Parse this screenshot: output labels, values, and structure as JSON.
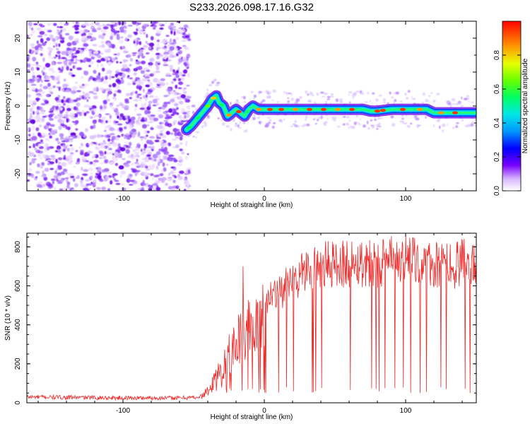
{
  "title": "S233.2026.098.17.16.G32",
  "chart_data": [
    {
      "type": "heatmap",
      "title": "S233.2026.098.17.16.G32",
      "xlabel": "Height of straight line (km)",
      "ylabel": "Frequency (Hz)",
      "xlim": [
        -168,
        150
      ],
      "ylim": [
        -25,
        25
      ],
      "xticks": [
        -100,
        0,
        100
      ],
      "yticks": [
        -20,
        -10,
        0,
        10,
        20
      ],
      "noise_region_x": [
        -168,
        -55
      ],
      "ridge": {
        "x": [
          -55,
          -52,
          -48,
          -44,
          -40,
          -37,
          -34,
          -32,
          -29,
          -26,
          -23,
          -20,
          -17,
          -14,
          -11,
          -8,
          -4,
          0,
          10,
          20,
          30,
          40,
          50,
          60,
          70,
          75,
          80,
          90,
          100,
          110,
          115,
          120,
          130,
          140,
          150
        ],
        "y": [
          -7,
          -6,
          -4,
          -2,
          0,
          2,
          3,
          1,
          0,
          -3,
          -2,
          -1,
          -2,
          -3,
          -1,
          0,
          -1,
          -1,
          -1,
          -1,
          -1,
          -1,
          -1,
          -1,
          -1,
          -1.5,
          -1.5,
          -1,
          -1,
          -1,
          -1,
          -2,
          -2,
          -2,
          -2
        ]
      },
      "colorbar": {
        "label": "Normalized spectral amplitude",
        "range": [
          0.0,
          1.0
        ],
        "ticks": [
          "0.0",
          "0.2",
          "0.4",
          "0.6",
          "0.8"
        ]
      }
    },
    {
      "type": "line",
      "xlabel": "Height of straight line (km)",
      "ylabel": "SNR (10 * v/v)",
      "xlim": [
        -168,
        150
      ],
      "ylim": [
        0,
        870
      ],
      "xticks": [
        -100,
        0,
        100
      ],
      "yticks": [
        0,
        200,
        400,
        600,
        800
      ],
      "color": "#ee2a2a",
      "series": [
        {
          "name": "SNR",
          "envelope": {
            "x": [
              -168,
              -100,
              -60,
              -45,
              -40,
              -35,
              -30,
              -25,
              -20,
              -15,
              -10,
              -5,
              0,
              10,
              20,
              30,
              40,
              60,
              80,
              100,
              120,
              150
            ],
            "y": [
              30,
              25,
              25,
              30,
              60,
              120,
              180,
              250,
              300,
              340,
              380,
              430,
              500,
              560,
              620,
              680,
              700,
              720,
              720,
              730,
              700,
              720
            ]
          },
          "dropout_floor": 50,
          "peaks": [
            {
              "x": -15,
              "y": 700
            },
            {
              "x": 100,
              "y": 860
            }
          ]
        }
      ]
    }
  ]
}
